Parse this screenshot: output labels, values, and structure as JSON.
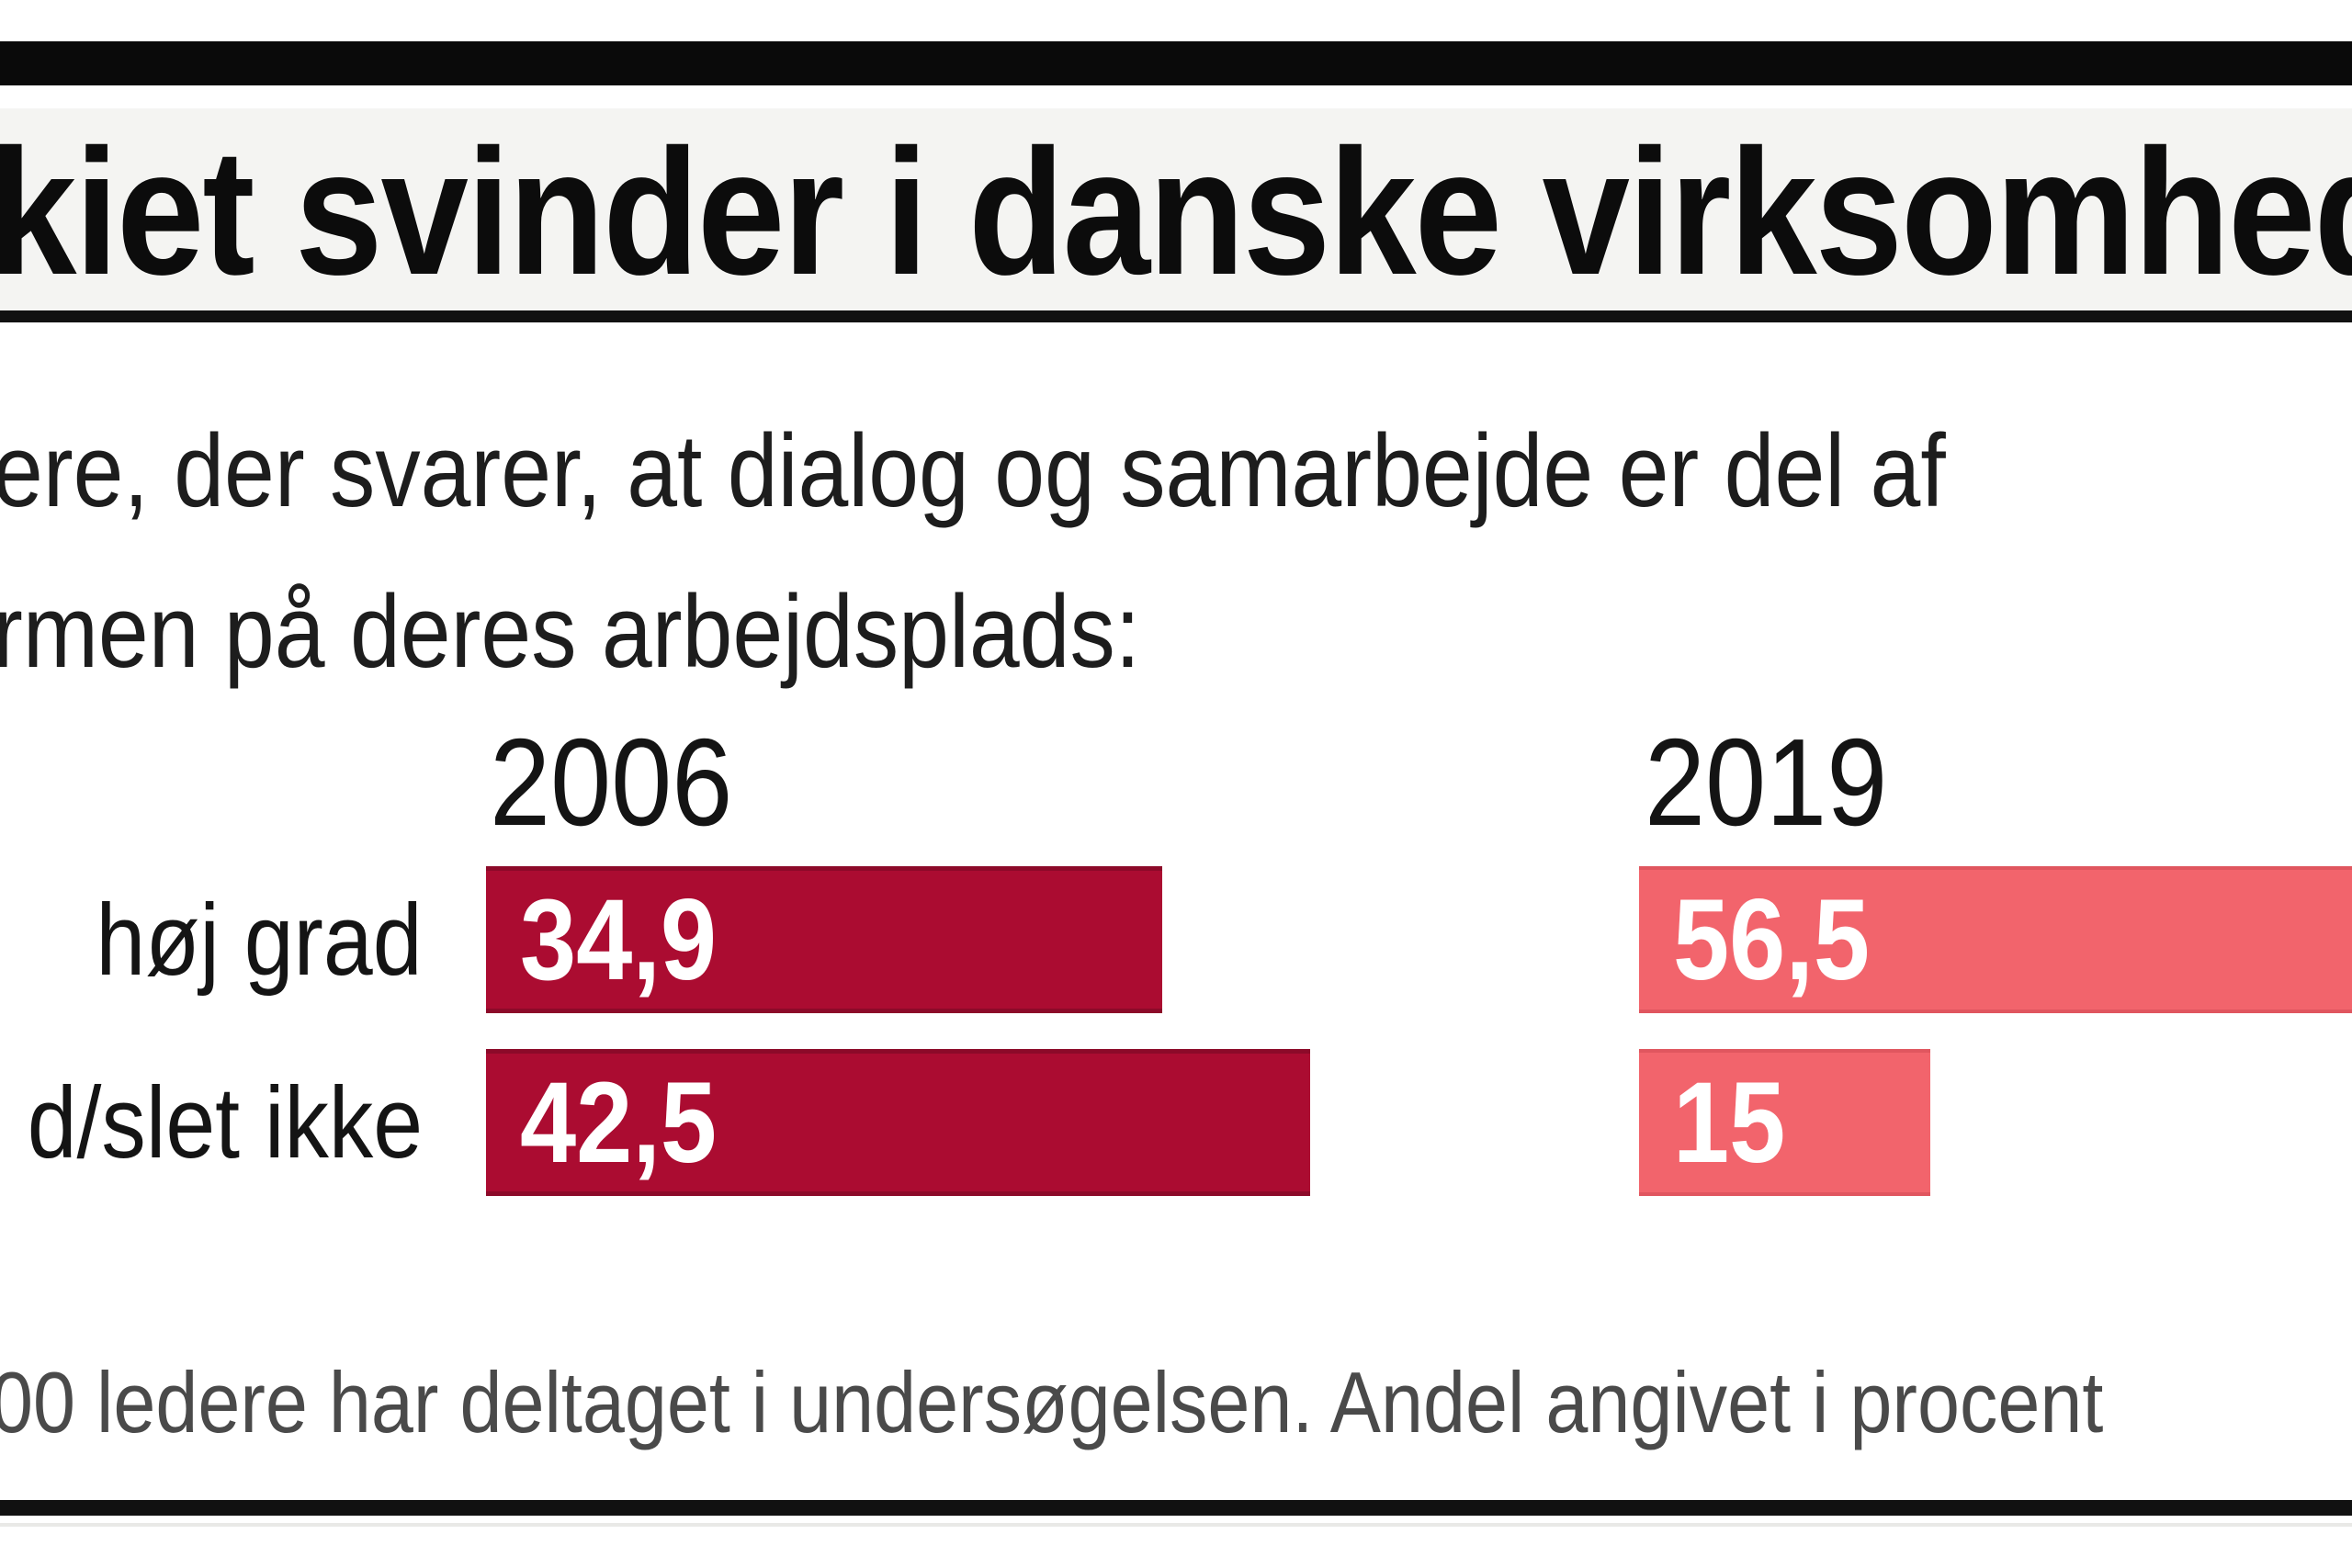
{
  "header": {
    "title": "kiet svinder i danske virksomhede"
  },
  "subtitle": {
    "line1": "ere, der svarer, at dialog og samarbejde er del af",
    "line2": "rmen på deres arbejdsplads:"
  },
  "footer": {
    "note": "00 ledere har deltaget i undersøgelsen. Andel angivet i procent"
  },
  "colors": {
    "bar_2006": "#ab0c31",
    "bar_2019": "#f2646c",
    "top_rule": "#0a0a0a",
    "footer_text": "#4a4a4a"
  },
  "chart_data": {
    "type": "bar",
    "orientation": "horizontal",
    "unit": "percent",
    "groups": [
      "2006",
      "2019"
    ],
    "categories": [
      "høj grad",
      "d/slet ikke"
    ],
    "series": [
      {
        "name": "2006",
        "color": "#ab0c31",
        "values": [
          34.9,
          42.5
        ],
        "value_labels": [
          "34,9",
          "42,5"
        ]
      },
      {
        "name": "2019",
        "color": "#f2646c",
        "values": [
          56.5,
          15
        ],
        "value_labels": [
          "56,5",
          "15"
        ]
      }
    ],
    "notes": "Image cropped at left and right edges; 2019 value 56,5 bar runs off the right edge. Scale ≈ 21.1 px per percent."
  }
}
